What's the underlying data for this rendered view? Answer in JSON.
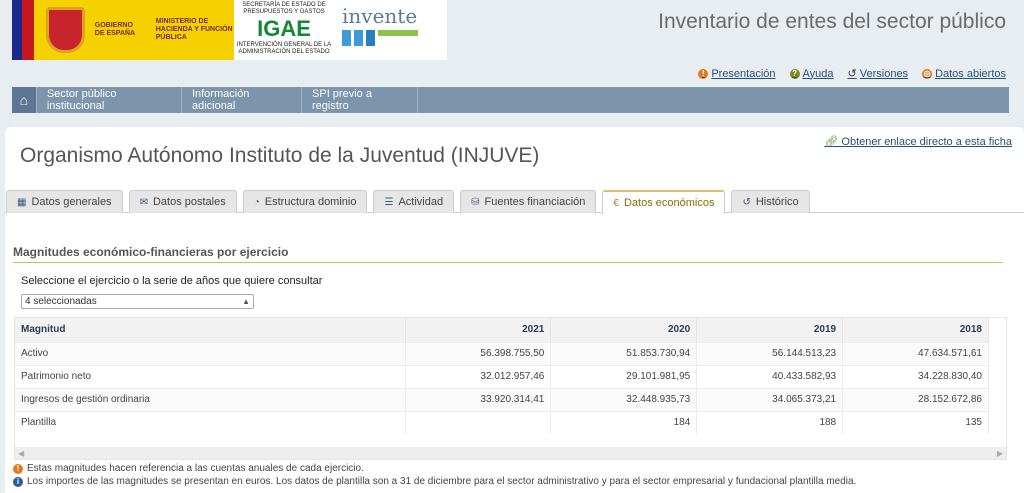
{
  "header": {
    "logo_gobierno": "GOBIERNO DE ESPAÑA",
    "logo_ministerio": "MINISTERIO DE HACIENDA Y FUNCIÓN PÚBLICA",
    "logo_secretaria": "SECRETARÍA DE ESTADO DE PRESUPUESTOS Y GASTOS",
    "logo_igae": "IGAE",
    "logo_igae_sub": "INTERVENCIÓN GENERAL DE LA ADMINISTRACIÓN DEL ESTADO",
    "logo_invente": "invente",
    "app_title": "Inventario de entes del sector público"
  },
  "links": [
    {
      "label": "Presentación",
      "icon": "info-icon",
      "color": "#e07b1a"
    },
    {
      "label": "Ayuda",
      "icon": "help-icon",
      "color": "#7a8a1a"
    },
    {
      "label": "Versiones",
      "icon": "history-icon",
      "color": "#2a4f78"
    },
    {
      "label": "Datos abiertos",
      "icon": "globe-icon",
      "color": "#e07b1a"
    }
  ],
  "nav": [
    "Sector público institucional",
    "Información adicional",
    "SPI previo a registro"
  ],
  "page": {
    "deep_link": "Obtener enlace directo a esta ficha",
    "title": "Organismo Autónomo Instituto de la Juventud (INJUVE)"
  },
  "tabs": [
    {
      "label": "Datos generales",
      "icon": "▦"
    },
    {
      "label": "Datos postales",
      "icon": "✉"
    },
    {
      "label": "Estructura dominio",
      "icon": "◔"
    },
    {
      "label": "Actividad",
      "icon": "☰"
    },
    {
      "label": "Fuentes financiación",
      "icon": "⛁"
    },
    {
      "label": "Datos económicos",
      "icon": "€",
      "active": true
    },
    {
      "label": "Histórico",
      "icon": "↺"
    }
  ],
  "section": {
    "title": "Magnitudes económico-financieras por ejercicio",
    "select_label": "Seleccione el ejercicio o la serie de años que quiere consultar",
    "select_value": "4 seleccionadas"
  },
  "table": {
    "headers": [
      "Magnitud",
      "2021",
      "2020",
      "2019",
      "2018"
    ],
    "rows": [
      [
        "Activo",
        "56.398.755,50",
        "51.853.730,94",
        "56.144.513,23",
        "47.634.571,61"
      ],
      [
        "Patrimonio neto",
        "32.012.957,46",
        "29.101.981,95",
        "40.433.582,93",
        "34.228.830,40"
      ],
      [
        "Ingresos de gestión ordinaria",
        "33.920.314,41",
        "32.448.935,73",
        "34.065.373,21",
        "28.152.672,86"
      ],
      [
        "Plantilla",
        "",
        "184",
        "188",
        "135"
      ]
    ]
  },
  "notes": [
    "Estas magnitudes hacen referencia a las cuentas anuales de cada ejercicio.",
    "Los importes de las magnitudes se presentan en euros. Los datos de plantilla son a 31 de diciembre para el sector administrativo y para el sector empresarial y fundacional plantilla media."
  ]
}
